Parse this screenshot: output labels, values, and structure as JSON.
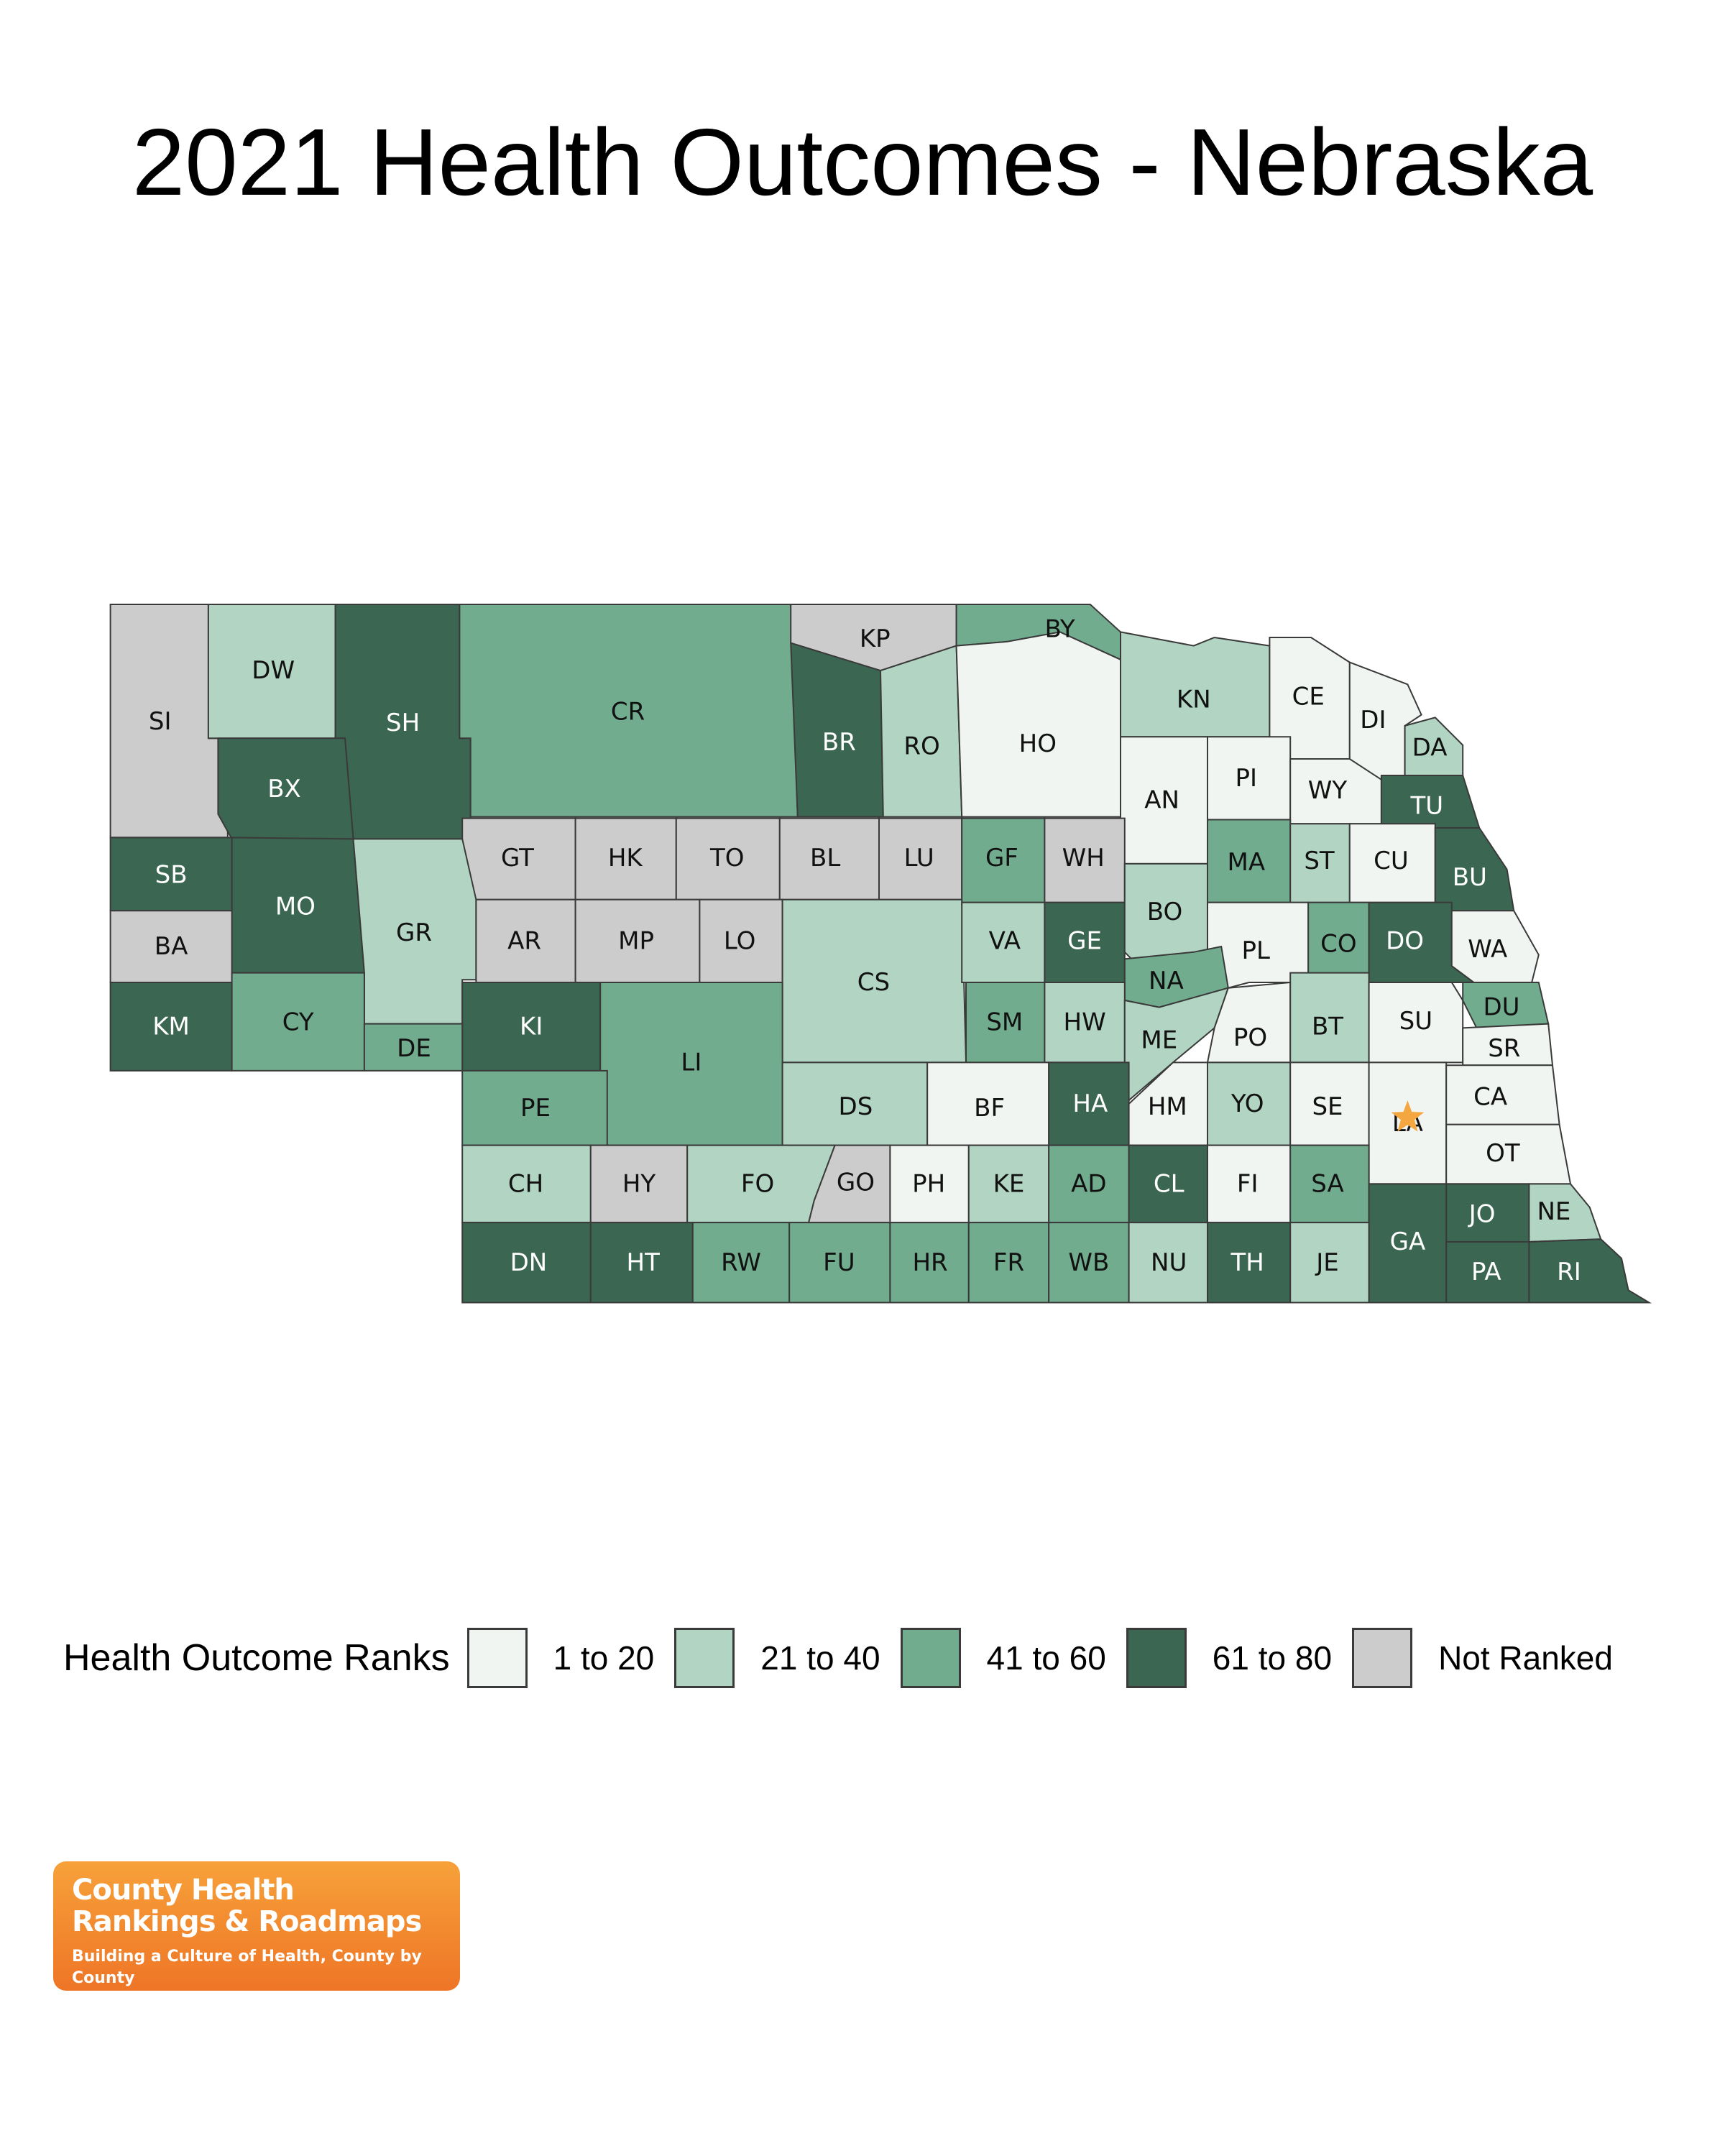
{
  "title": "2021 Health Outcomes - Nebraska",
  "colors": {
    "1 to 20": "#f1f5f2",
    "21 to 40": "#b2d4c3",
    "41 to 60": "#72ac8f",
    "61 to 80": "#3b6652",
    "Not Ranked": "#cccccc"
  },
  "legend": {
    "title": "Health Outcome Ranks",
    "items": [
      {
        "label": "1 to 20",
        "color": "#f1f5f2"
      },
      {
        "label": "21 to 40",
        "color": "#b2d4c3"
      },
      {
        "label": "41 to 60",
        "color": "#72ac8f"
      },
      {
        "label": "61 to 80",
        "color": "#3b6652"
      },
      {
        "label": "Not Ranked",
        "color": "#cccccc"
      }
    ]
  },
  "counties": [
    {
      "code": "SI",
      "rank": "Not Ranked"
    },
    {
      "code": "DW",
      "rank": "21 to 40"
    },
    {
      "code": "SH",
      "rank": "61 to 80"
    },
    {
      "code": "CR",
      "rank": "41 to 60"
    },
    {
      "code": "KP",
      "rank": "Not Ranked"
    },
    {
      "code": "BY",
      "rank": "41 to 60"
    },
    {
      "code": "BR",
      "rank": "61 to 80"
    },
    {
      "code": "RO",
      "rank": "21 to 40"
    },
    {
      "code": "HO",
      "rank": "1 to 20"
    },
    {
      "code": "KN",
      "rank": "21 to 40"
    },
    {
      "code": "CE",
      "rank": "1 to 20"
    },
    {
      "code": "DI",
      "rank": "1 to 20"
    },
    {
      "code": "DA",
      "rank": "21 to 40"
    },
    {
      "code": "BX",
      "rank": "61 to 80"
    },
    {
      "code": "AN",
      "rank": "1 to 20"
    },
    {
      "code": "PI",
      "rank": "1 to 20"
    },
    {
      "code": "WY",
      "rank": "1 to 20"
    },
    {
      "code": "TU",
      "rank": "61 to 80"
    },
    {
      "code": "SB",
      "rank": "61 to 80"
    },
    {
      "code": "MO",
      "rank": "61 to 80"
    },
    {
      "code": "GT",
      "rank": "Not Ranked"
    },
    {
      "code": "HK",
      "rank": "Not Ranked"
    },
    {
      "code": "TO",
      "rank": "Not Ranked"
    },
    {
      "code": "BL",
      "rank": "Not Ranked"
    },
    {
      "code": "LU",
      "rank": "Not Ranked"
    },
    {
      "code": "GF",
      "rank": "41 to 60"
    },
    {
      "code": "WH",
      "rank": "Not Ranked"
    },
    {
      "code": "MA",
      "rank": "41 to 60"
    },
    {
      "code": "ST",
      "rank": "21 to 40"
    },
    {
      "code": "CU",
      "rank": "1 to 20"
    },
    {
      "code": "BU",
      "rank": "61 to 80"
    },
    {
      "code": "GR",
      "rank": "21 to 40"
    },
    {
      "code": "BA",
      "rank": "Not Ranked"
    },
    {
      "code": "AR",
      "rank": "Not Ranked"
    },
    {
      "code": "MP",
      "rank": "Not Ranked"
    },
    {
      "code": "LO",
      "rank": "Not Ranked"
    },
    {
      "code": "CS",
      "rank": "21 to 40"
    },
    {
      "code": "VA",
      "rank": "21 to 40"
    },
    {
      "code": "GE",
      "rank": "61 to 80"
    },
    {
      "code": "BO",
      "rank": "21 to 40"
    },
    {
      "code": "PL",
      "rank": "1 to 20"
    },
    {
      "code": "CO",
      "rank": "41 to 60"
    },
    {
      "code": "DO",
      "rank": "61 to 80"
    },
    {
      "code": "WA",
      "rank": "1 to 20"
    },
    {
      "code": "NA",
      "rank": "41 to 60"
    },
    {
      "code": "KM",
      "rank": "61 to 80"
    },
    {
      "code": "CY",
      "rank": "41 to 60"
    },
    {
      "code": "KI",
      "rank": "61 to 80"
    },
    {
      "code": "SM",
      "rank": "41 to 60"
    },
    {
      "code": "HW",
      "rank": "21 to 40"
    },
    {
      "code": "ME",
      "rank": "21 to 40"
    },
    {
      "code": "PO",
      "rank": "1 to 20"
    },
    {
      "code": "BT",
      "rank": "21 to 40"
    },
    {
      "code": "SU",
      "rank": "1 to 20"
    },
    {
      "code": "DU",
      "rank": "41 to 60"
    },
    {
      "code": "DE",
      "rank": "41 to 60"
    },
    {
      "code": "LI",
      "rank": "41 to 60"
    },
    {
      "code": "SR",
      "rank": "1 to 20"
    },
    {
      "code": "PE",
      "rank": "41 to 60"
    },
    {
      "code": "DS",
      "rank": "21 to 40"
    },
    {
      "code": "BF",
      "rank": "1 to 20"
    },
    {
      "code": "HA",
      "rank": "61 to 80"
    },
    {
      "code": "HM",
      "rank": "1 to 20"
    },
    {
      "code": "YO",
      "rank": "21 to 40"
    },
    {
      "code": "SE",
      "rank": "1 to 20"
    },
    {
      "code": "LA",
      "rank": "1 to 20"
    },
    {
      "code": "CA",
      "rank": "1 to 20"
    },
    {
      "code": "OT",
      "rank": "1 to 20"
    },
    {
      "code": "CH",
      "rank": "21 to 40"
    },
    {
      "code": "HY",
      "rank": "Not Ranked"
    },
    {
      "code": "FO",
      "rank": "21 to 40"
    },
    {
      "code": "GO",
      "rank": "Not Ranked"
    },
    {
      "code": "PH",
      "rank": "1 to 20"
    },
    {
      "code": "KE",
      "rank": "21 to 40"
    },
    {
      "code": "AD",
      "rank": "41 to 60"
    },
    {
      "code": "CL",
      "rank": "61 to 80"
    },
    {
      "code": "FI",
      "rank": "1 to 20"
    },
    {
      "code": "SA",
      "rank": "41 to 60"
    },
    {
      "code": "JO",
      "rank": "61 to 80"
    },
    {
      "code": "NE",
      "rank": "21 to 40"
    },
    {
      "code": "GA",
      "rank": "61 to 80"
    },
    {
      "code": "DN",
      "rank": "61 to 80"
    },
    {
      "code": "HT",
      "rank": "61 to 80"
    },
    {
      "code": "RW",
      "rank": "41 to 60"
    },
    {
      "code": "FU",
      "rank": "41 to 60"
    },
    {
      "code": "HR",
      "rank": "41 to 60"
    },
    {
      "code": "FR",
      "rank": "41 to 60"
    },
    {
      "code": "WB",
      "rank": "41 to 60"
    },
    {
      "code": "NU",
      "rank": "21 to 40"
    },
    {
      "code": "TH",
      "rank": "61 to 80"
    },
    {
      "code": "JE",
      "rank": "21 to 40"
    },
    {
      "code": "PA",
      "rank": "61 to 80"
    },
    {
      "code": "RI",
      "rank": "61 to 80"
    }
  ],
  "capital_marker": {
    "county": "LA",
    "icon": "star-icon",
    "color": "#f4a640"
  },
  "logo": {
    "line1": "County Health",
    "line2": "Rankings & Roadmaps",
    "tagline": "Building a Culture of Health, County by County"
  }
}
